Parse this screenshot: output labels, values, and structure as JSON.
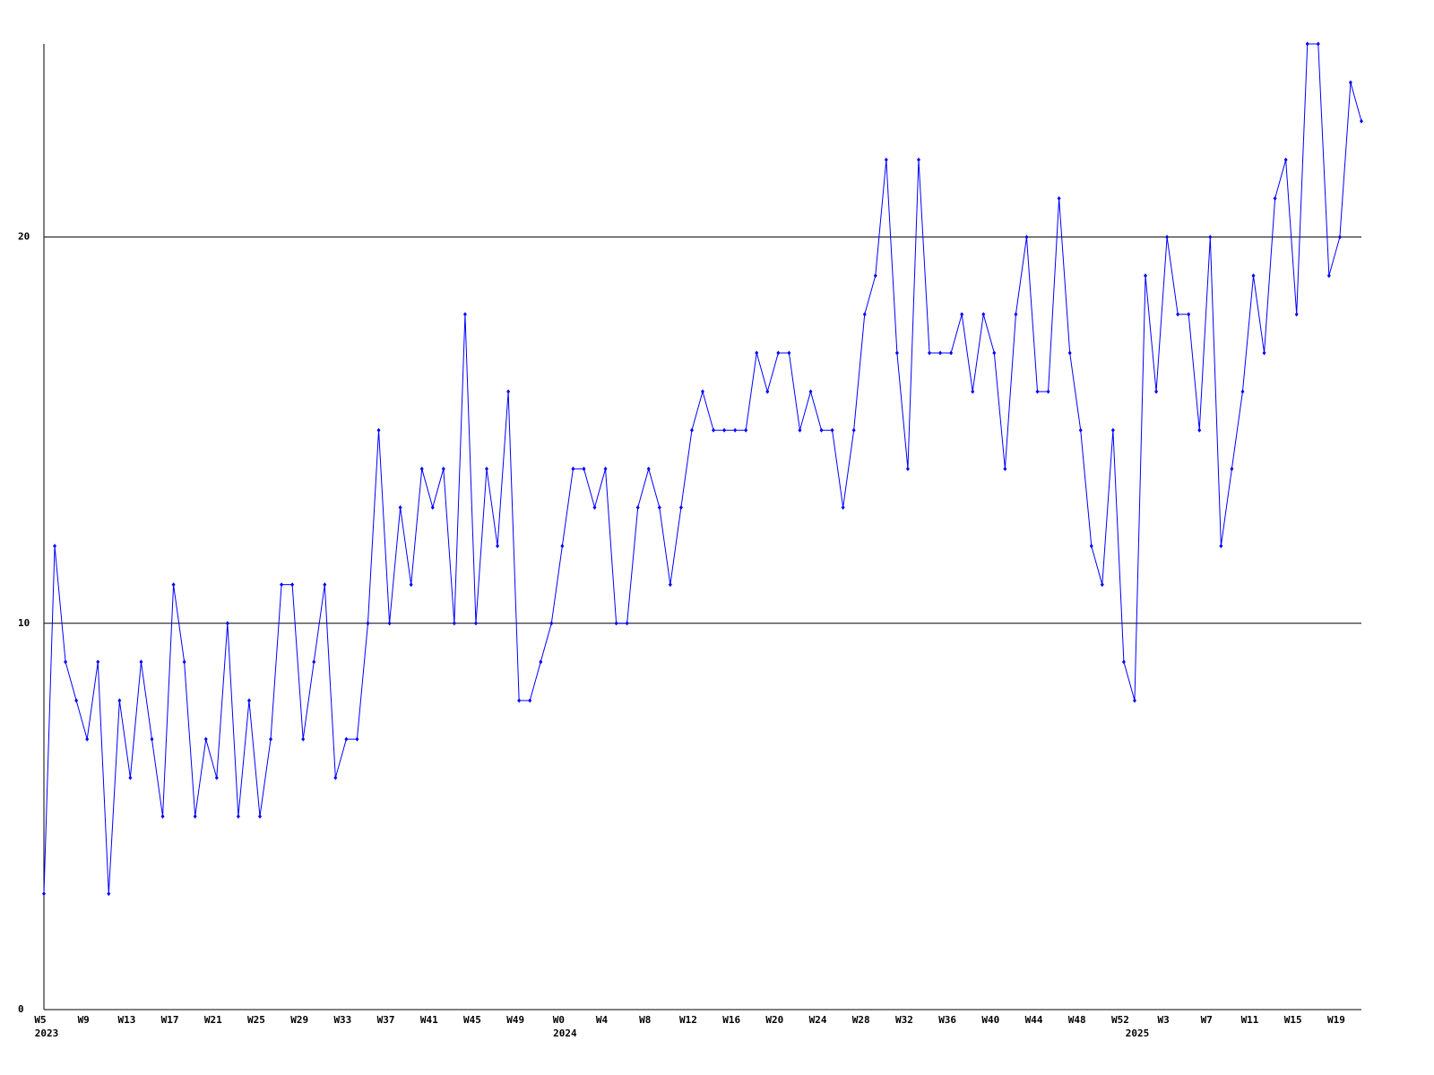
{
  "chart_data": {
    "type": "line",
    "categories": [
      "W5",
      null,
      null,
      null,
      "W9",
      null,
      null,
      null,
      "W13",
      null,
      null,
      null,
      "W17",
      null,
      null,
      null,
      "W21",
      null,
      null,
      null,
      "W25",
      null,
      null,
      null,
      "W29",
      null,
      null,
      null,
      "W33",
      null,
      null,
      null,
      "W37",
      null,
      null,
      null,
      "W41",
      null,
      null,
      null,
      "W45",
      null,
      null,
      null,
      "W49",
      null,
      null,
      null,
      "W0",
      null,
      null,
      null,
      "W4",
      null,
      null,
      null,
      "W8",
      null,
      null,
      null,
      "W12",
      null,
      null,
      null,
      "W16",
      null,
      null,
      null,
      "W20",
      null,
      null,
      null,
      "W24",
      null,
      null,
      null,
      "W28",
      null,
      null,
      null,
      "W32",
      null,
      null,
      null,
      "W36",
      null,
      null,
      null,
      "W40",
      null,
      null,
      null,
      "W44",
      null,
      null,
      null,
      "W48",
      null,
      null,
      null,
      "W52",
      null,
      null,
      null,
      "W3",
      null,
      null,
      null,
      "W7",
      null,
      null,
      null,
      "W11",
      null,
      null,
      null,
      "W15",
      null,
      null,
      null,
      "W19",
      null,
      null
    ],
    "category_years": [
      "2023",
      null,
      null,
      null,
      null,
      null,
      null,
      null,
      null,
      null,
      null,
      null,
      null,
      null,
      null,
      null,
      null,
      null,
      null,
      null,
      null,
      null,
      null,
      null,
      null,
      null,
      null,
      null,
      null,
      null,
      null,
      null,
      null,
      null,
      null,
      null,
      null,
      null,
      null,
      null,
      null,
      null,
      null,
      null,
      null,
      null,
      null,
      null,
      "2024",
      null,
      null,
      null,
      null,
      null,
      null,
      null,
      null,
      null,
      null,
      null,
      null,
      null,
      null,
      null,
      null,
      null,
      null,
      null,
      null,
      null,
      null,
      null,
      null,
      null,
      null,
      null,
      null,
      null,
      null,
      null,
      null,
      null,
      null,
      null,
      null,
      null,
      null,
      null,
      null,
      null,
      null,
      null,
      null,
      null,
      null,
      null,
      null,
      null,
      null,
      null,
      null,
      "2025",
      null,
      null,
      null,
      null,
      null,
      null,
      null,
      null,
      null,
      null,
      null,
      null,
      null,
      null,
      null,
      null,
      null,
      null,
      null,
      null
    ],
    "values": [
      3,
      12,
      9,
      8,
      7,
      9,
      3,
      8,
      6,
      9,
      7,
      5,
      11,
      9,
      5,
      7,
      6,
      10,
      5,
      8,
      5,
      7,
      11,
      11,
      7,
      9,
      11,
      6,
      7,
      7,
      10,
      15,
      10,
      13,
      11,
      14,
      13,
      14,
      10,
      18,
      10,
      14,
      12,
      16,
      8,
      8,
      9,
      10,
      12,
      14,
      14,
      13,
      14,
      10,
      10,
      13,
      14,
      13,
      11,
      13,
      15,
      16,
      15,
      15,
      15,
      15,
      17,
      16,
      17,
      17,
      15,
      16,
      15,
      15,
      13,
      15,
      18,
      19,
      22,
      17,
      14,
      22,
      17,
      17,
      17,
      18,
      16,
      18,
      17,
      14,
      18,
      20,
      16,
      16,
      21,
      17,
      15,
      12,
      11,
      15,
      9,
      8,
      19,
      16,
      20,
      18,
      18,
      15,
      20,
      12,
      14,
      16,
      19,
      17,
      21,
      22,
      18,
      25,
      25,
      19,
      20,
      24,
      23
    ],
    "color": "#0000ff",
    "ylim": [
      0,
      25
    ],
    "yticks": [
      0,
      10,
      20
    ],
    "grid": true
  }
}
